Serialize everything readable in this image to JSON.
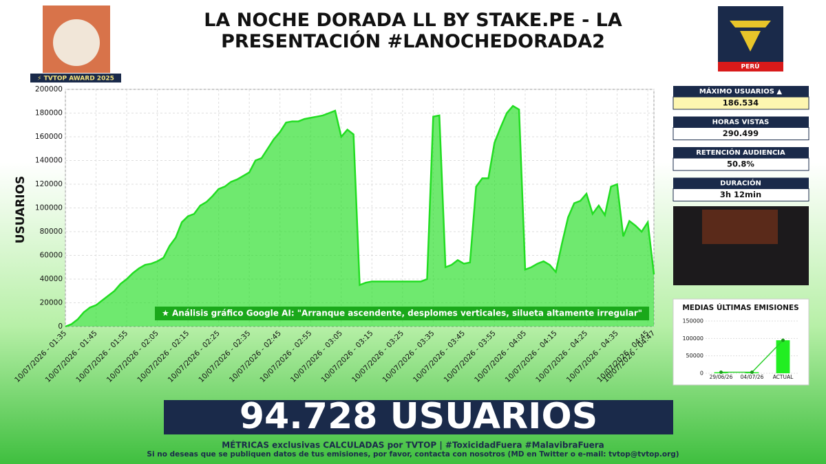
{
  "header": {
    "title": "LA NOCHE DORADA LL BY STAKE.PE - LA PRESENTACIÓN #LANOCHEDORADA2",
    "badge": "⚡ TVTOP AWARD 2025",
    "logo_text": "PERÚ"
  },
  "stats": [
    {
      "label": "MÁXIMO USUARIOS ▲",
      "value": "186.534"
    },
    {
      "label": "HORAS VISTAS",
      "value": "290.499"
    },
    {
      "label": "RETENCIÓN AUDIENCIA",
      "value": "50.8%"
    },
    {
      "label": "DURACIÓN",
      "value": "3h 12min"
    }
  ],
  "banner": {
    "text": "94.728 USUARIOS"
  },
  "footer": {
    "line1": "MÉTRICAS exclusivas CALCULADAS por TVTOP | #ToxicidadFuera #MalavibraFuera",
    "line2": "Si no deseas que se publiquen datos de tus emisiones, por favor, contacta con nosotros (MD en Twitter o e-mail: tvtop@tvtop.org)"
  },
  "chart_data": [
    {
      "type": "area",
      "ylabel": "USUARIOS",
      "color": "#22dd22",
      "annotation": "★ Análisis gráfico Google AI: \"Arranque ascendente, desplomes verticales, silueta altamente irregular\"",
      "grid": true,
      "ylim": [
        0,
        200000
      ],
      "yticks": [
        0,
        20000,
        40000,
        60000,
        80000,
        100000,
        120000,
        140000,
        160000,
        180000,
        200000
      ],
      "categories": [
        "10/07/2026 - 01:35",
        null,
        null,
        null,
        null,
        "10/07/2026 - 01:45",
        null,
        null,
        null,
        null,
        "10/07/2026 - 01:55",
        null,
        null,
        null,
        null,
        "10/07/2026 - 02:05",
        null,
        null,
        null,
        null,
        "10/07/2026 - 02:15",
        null,
        null,
        null,
        null,
        "10/07/2026 - 02:25",
        null,
        null,
        null,
        null,
        "10/07/2026 - 02:35",
        null,
        null,
        null,
        null,
        "10/07/2026 - 02:45",
        null,
        null,
        null,
        null,
        "10/07/2026 - 02:55",
        null,
        null,
        null,
        null,
        "10/07/2026 - 03:05",
        null,
        null,
        null,
        null,
        "10/07/2026 - 03:15",
        null,
        null,
        null,
        null,
        "10/07/2026 - 03:25",
        null,
        null,
        null,
        null,
        "10/07/2026 - 03:35",
        null,
        null,
        null,
        null,
        "10/07/2026 - 03:45",
        null,
        null,
        null,
        null,
        "10/07/2026 - 03:55",
        null,
        null,
        null,
        null,
        "10/07/2026 - 04:05",
        null,
        null,
        null,
        null,
        "10/07/2026 - 04:15",
        null,
        null,
        null,
        null,
        "10/07/2026 - 04:25",
        null,
        null,
        null,
        null,
        "10/07/2026 - 04:35",
        null,
        null,
        null,
        null,
        "10/07/2026 - 04:45",
        "10/07/2026 - 04:47"
      ],
      "values": [
        0,
        2000,
        6000,
        12000,
        16000,
        18000,
        22000,
        26000,
        30000,
        36000,
        40000,
        45000,
        49000,
        52000,
        53000,
        55000,
        58000,
        68000,
        75000,
        88000,
        93000,
        95000,
        102000,
        105000,
        110000,
        116000,
        118000,
        122000,
        124000,
        127000,
        130000,
        140000,
        142000,
        150000,
        158000,
        164000,
        172000,
        173000,
        173000,
        175000,
        176000,
        177000,
        178000,
        180000,
        182000,
        160000,
        166000,
        162000,
        35000,
        37000,
        38000,
        38000,
        38000,
        38000,
        38000,
        38000,
        38000,
        38000,
        38000,
        40000,
        177000,
        178000,
        50000,
        52000,
        56000,
        53000,
        54000,
        118000,
        125000,
        125000,
        155000,
        168000,
        180000,
        186000,
        183000,
        48000,
        50000,
        53000,
        55000,
        52000,
        46000,
        70000,
        92000,
        104000,
        106000,
        112000,
        95000,
        102000,
        94000,
        118000,
        120000,
        76000,
        89000,
        85000,
        80000,
        88000,
        44000
      ]
    },
    {
      "type": "bar",
      "title": "MEDIAS ÚLTIMAS EMISIONES",
      "color": "#22ee22",
      "categories": [
        "29/06/26",
        "04/07/26",
        "ACTUAL"
      ],
      "values": [
        3000,
        3000,
        94728
      ],
      "ylim": [
        0,
        150000
      ],
      "yticks": [
        0,
        50000,
        100000,
        150000
      ],
      "grid": true
    }
  ]
}
